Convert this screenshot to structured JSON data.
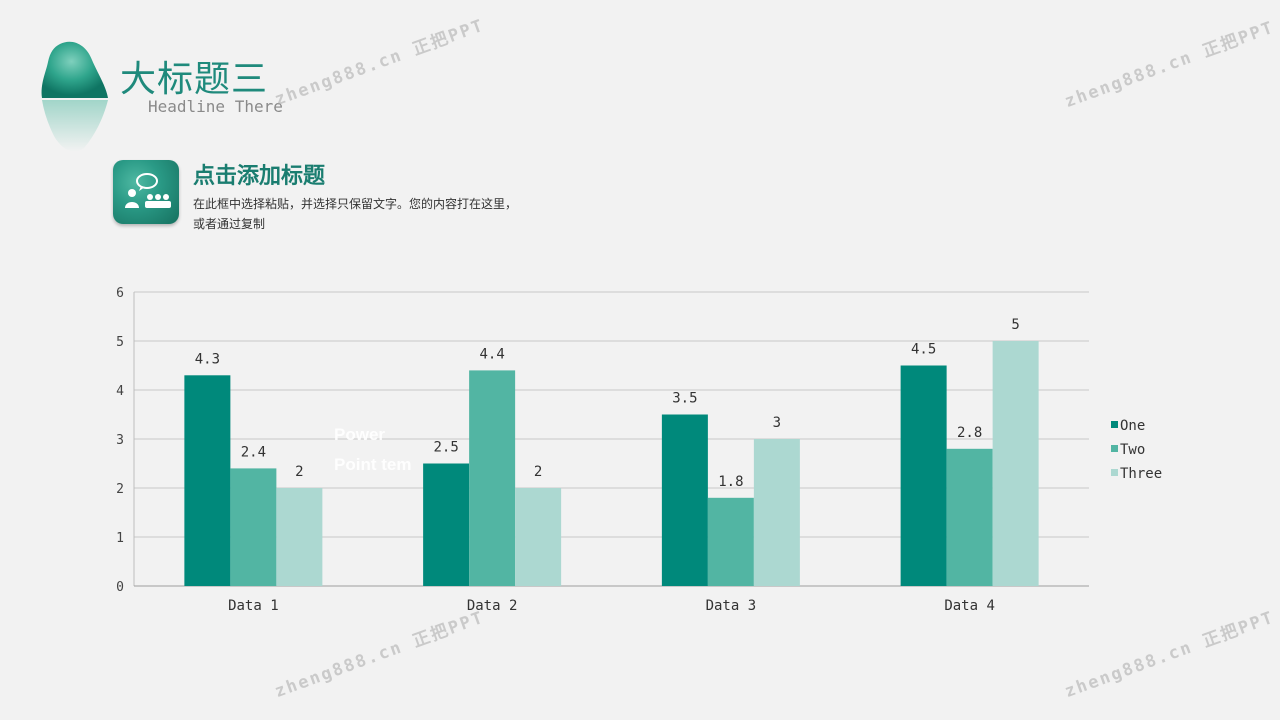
{
  "header": {
    "title": "大标题三",
    "subtitle": "Headline There"
  },
  "section": {
    "title": "点击添加标题",
    "desc_line1": "在此框中选择粘贴，并选择只保留文字。您的内容打在这里，",
    "desc_line2": "或者通过复制",
    "icon": "presentation-people-icon"
  },
  "watermarks": [
    "zheng888.cn 正把PPT",
    "zheng888.cn 正把PPT",
    "zheng888.cn 正把PPT",
    "zheng888.cn 正把PPT"
  ],
  "ghost_text": {
    "line1": "Power",
    "line2": "Point tem"
  },
  "colors": {
    "accent": "#1a7d70",
    "series_one": "#00897b",
    "series_two": "#52b5a3",
    "series_three": "#acd8d1",
    "background": "#f2f2f2"
  },
  "chart_data": {
    "type": "bar",
    "categories": [
      "Data 1",
      "Data 2",
      "Data 3",
      "Data 4"
    ],
    "series": [
      {
        "name": "One",
        "values": [
          4.3,
          2.5,
          3.5,
          4.5
        ],
        "labels": [
          "4.3",
          "2.5",
          "3.5",
          "4.5"
        ]
      },
      {
        "name": "Two",
        "values": [
          2.4,
          4.4,
          1.8,
          2.8
        ],
        "labels": [
          "2.4",
          "4.4",
          "1.8",
          "2.8"
        ]
      },
      {
        "name": "Three",
        "values": [
          2,
          2,
          3,
          5
        ],
        "labels": [
          "2",
          "2",
          "3",
          "5"
        ]
      }
    ],
    "ylim": [
      0,
      6
    ],
    "yticks": [
      "0",
      "1",
      "2",
      "3",
      "4",
      "5",
      "6"
    ],
    "grid": true,
    "legend": "right"
  }
}
